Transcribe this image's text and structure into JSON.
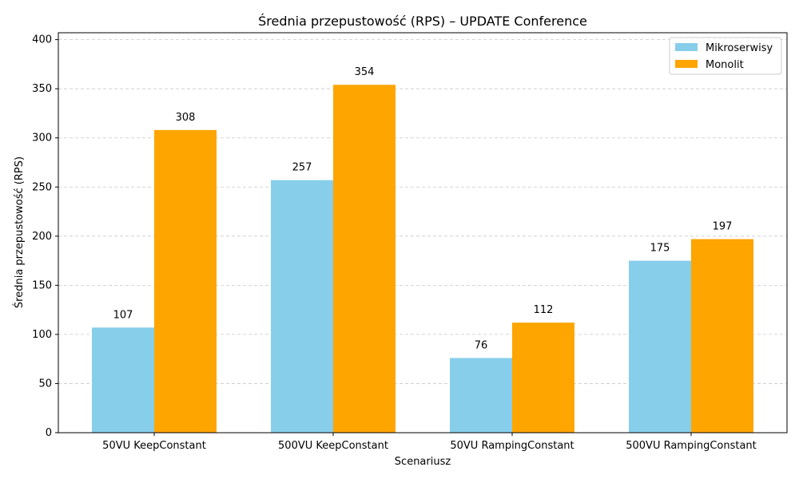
{
  "chart_data": {
    "type": "bar",
    "title": "Średnia przepustowość (RPS) – UPDATE Conference",
    "xlabel": "Scenariusz",
    "ylabel": "Średnia przepustowość (RPS)",
    "categories": [
      "50VU KeepConstant",
      "500VU KeepConstant",
      "50VU RampingConstant",
      "500VU RampingConstant"
    ],
    "series": [
      {
        "name": "Mikroserwisy",
        "color": "#87CEEB",
        "values": [
          107,
          257,
          76,
          175
        ],
        "labels": [
          "107",
          "257",
          "76",
          "175"
        ]
      },
      {
        "name": "Monolit",
        "color": "#FFA500",
        "values": [
          308,
          354,
          112,
          197
        ],
        "labels": [
          "308",
          "354",
          "112",
          "197"
        ]
      }
    ],
    "ylim": [
      0,
      407
    ],
    "yticks": [
      0,
      50,
      100,
      150,
      200,
      250,
      300,
      350,
      400
    ],
    "grid": "horizontal dashed",
    "legend_position": "top-right"
  }
}
